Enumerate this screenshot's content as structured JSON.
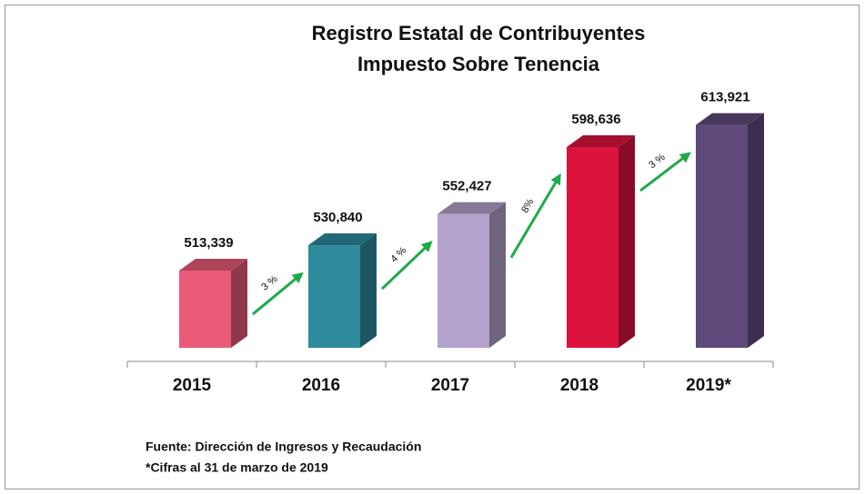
{
  "chart_data": {
    "type": "bar3d",
    "title": [
      "Registro Estatal de Contribuyentes",
      "Impuesto Sobre Tenencia"
    ],
    "categories": [
      "2015",
      "2016",
      "2017",
      "2018",
      "2019*"
    ],
    "values": [
      513339,
      530840,
      552427,
      598636,
      613921
    ],
    "value_labels": [
      "513,339",
      "530,840",
      "552,427",
      "598,636",
      "613,921"
    ],
    "colors": [
      "#e85a78",
      "#2e8a9c",
      "#b3a2cb",
      "#dc143c",
      "#5e4a7a"
    ],
    "ylim": [
      460000,
      640000
    ],
    "annotations": [
      "3 %",
      "4 %",
      "8%",
      "3 %"
    ],
    "notes": [
      "Fuente: Dirección de Ingresos y Recaudación",
      "*Cifras al 31 de marzo de 2019"
    ]
  }
}
